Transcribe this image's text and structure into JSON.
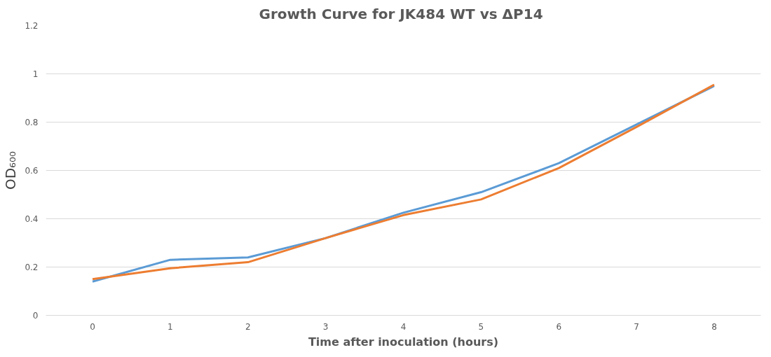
{
  "chart_data": {
    "type": "line",
    "title": "Growth Curve for JK484 WT vs  ΔP14",
    "xlabel": "Time after inoculation (hours)",
    "ylabel": "OD₆₀₀",
    "categories": [
      "0",
      "1",
      "2",
      "3",
      "4",
      "5",
      "6",
      "7",
      "8"
    ],
    "series": [
      {
        "color": "#5b9bd5",
        "values": [
          0.14,
          0.23,
          0.24,
          0.32,
          0.425,
          0.51,
          0.63,
          0.79,
          0.95
        ]
      },
      {
        "color": "#ed7d31",
        "values": [
          0.15,
          0.195,
          0.22,
          0.32,
          0.415,
          0.48,
          0.61,
          0.78,
          0.955
        ]
      }
    ],
    "ylim": [
      0,
      1.2
    ],
    "yticks": [
      0,
      0.2,
      0.4,
      0.6,
      0.8,
      1,
      1.2
    ],
    "grid": "y",
    "marker": "none",
    "line_style": "solid"
  }
}
